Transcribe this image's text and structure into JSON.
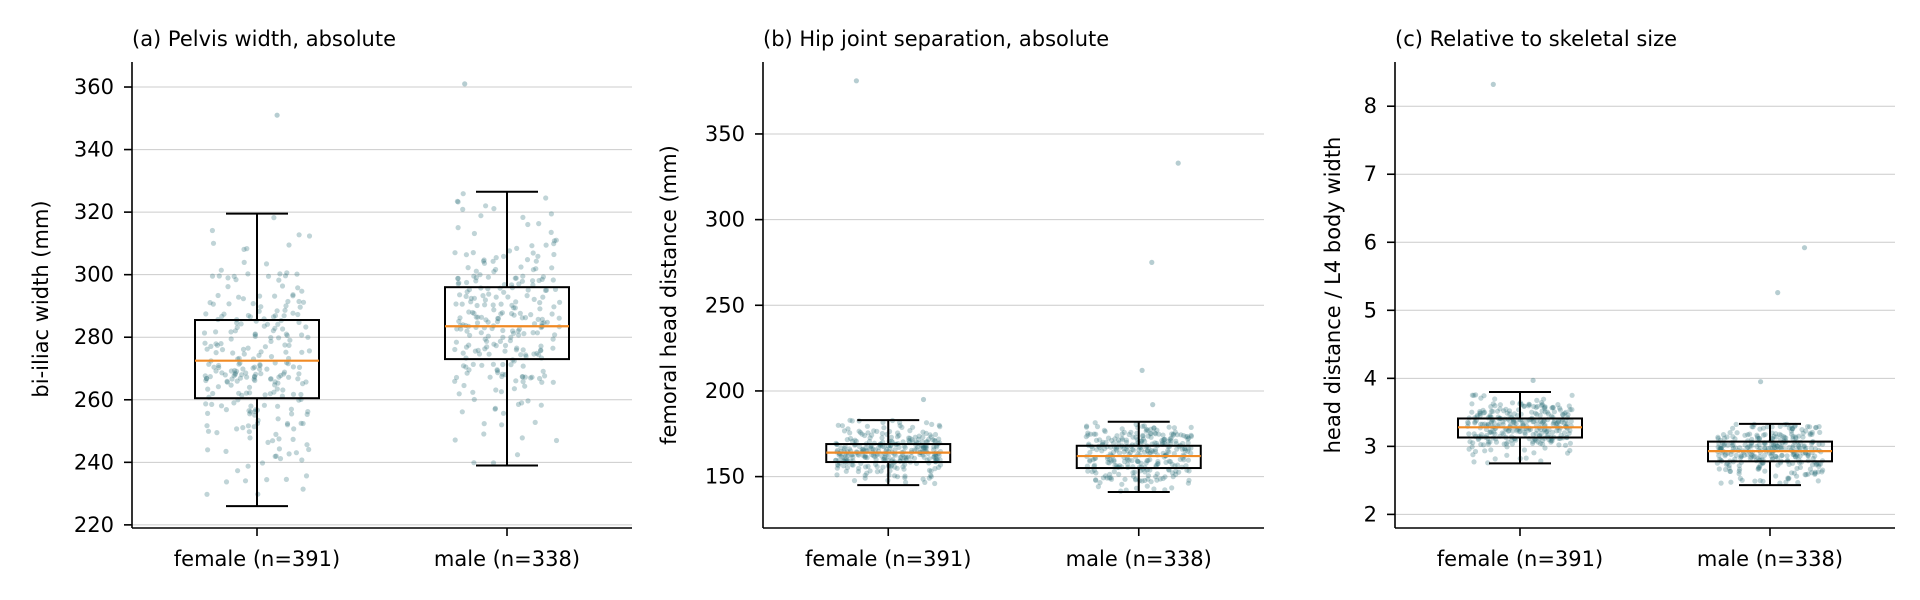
{
  "colors": {
    "points": "#2e6f7b",
    "median": "#f08a24"
  },
  "chart_data": [
    {
      "type": "box",
      "title": "(a) Pelvis width, absolute",
      "xlabel": "",
      "ylabel": "bi-iliac width (mm)",
      "ylim": [
        219,
        368
      ],
      "yticks": [
        220,
        240,
        260,
        280,
        300,
        320,
        340,
        360
      ],
      "grid": "horizontal",
      "categories": [
        "female (n=391)",
        "male (n=338)"
      ],
      "boxes": [
        {
          "whislo": 226,
          "q1": 260.5,
          "med": 272.5,
          "q3": 285.5,
          "whishi": 319.5,
          "fliers": [
            351
          ]
        },
        {
          "whislo": 239,
          "q1": 273,
          "med": 283.5,
          "q3": 296,
          "whishi": 326.5,
          "fliers": [
            361
          ]
        }
      ]
    },
    {
      "type": "box",
      "title": "(b) Hip joint separation, absolute",
      "xlabel": "",
      "ylabel": "femoral head distance (mm)",
      "ylim": [
        120,
        392
      ],
      "yticks": [
        150,
        200,
        250,
        300,
        350
      ],
      "grid": "horizontal",
      "categories": [
        "female (n=391)",
        "male (n=338)"
      ],
      "boxes": [
        {
          "whislo": 145,
          "q1": 158.5,
          "med": 164,
          "q3": 169,
          "whishi": 183,
          "fliers": [
            381,
            195
          ]
        },
        {
          "whislo": 141,
          "q1": 155,
          "med": 162,
          "q3": 168,
          "whishi": 182,
          "fliers": [
            333,
            275,
            212,
            192
          ]
        }
      ]
    },
    {
      "type": "box",
      "title": "(c) Relative to skeletal size",
      "xlabel": "",
      "ylabel": "head distance / L4 body width",
      "ylim": [
        1.8,
        8.65
      ],
      "yticks": [
        2,
        3,
        4,
        5,
        6,
        7,
        8
      ],
      "grid": "horizontal",
      "categories": [
        "female (n=391)",
        "male (n=338)"
      ],
      "boxes": [
        {
          "whislo": 2.75,
          "q1": 3.13,
          "med": 3.28,
          "q3": 3.41,
          "whishi": 3.8,
          "fliers": [
            8.32,
            3.97
          ]
        },
        {
          "whislo": 2.43,
          "q1": 2.78,
          "med": 2.93,
          "q3": 3.07,
          "whishi": 3.33,
          "fliers": [
            5.92,
            5.26,
            3.95
          ]
        }
      ]
    }
  ]
}
